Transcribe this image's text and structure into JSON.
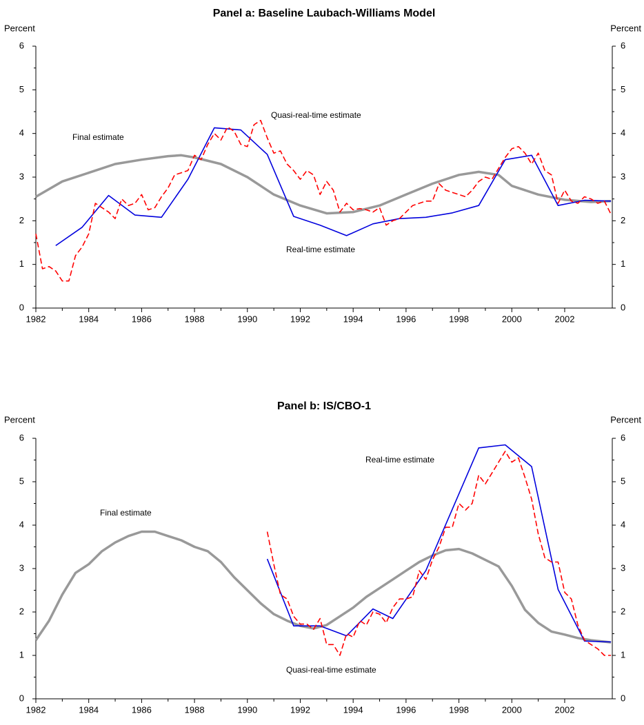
{
  "chart_data": [
    {
      "type": "line",
      "title": "Panel a: Baseline Laubach-Williams Model",
      "y_label": "Percent",
      "xlim": [
        1982,
        2003.8
      ],
      "xticks": [
        1982,
        1984,
        1986,
        1988,
        1990,
        1992,
        1994,
        1996,
        1998,
        2000,
        2002
      ],
      "ylim": [
        0,
        6
      ],
      "yticks": [
        0,
        1,
        2,
        3,
        4,
        5,
        6
      ],
      "series": [
        {
          "name": "Final estimate",
          "color": "#999999",
          "style": "solid",
          "x": [
            1982,
            1983,
            1984,
            1985,
            1986,
            1987,
            1987.5,
            1988,
            1989,
            1990,
            1991,
            1992,
            1993,
            1994,
            1995,
            1996,
            1997,
            1998,
            1998.75,
            1999.5,
            2000,
            2001,
            2002,
            2003,
            2003.75
          ],
          "values": [
            2.55,
            2.9,
            3.1,
            3.3,
            3.4,
            3.48,
            3.5,
            3.45,
            3.3,
            3.0,
            2.6,
            2.35,
            2.17,
            2.2,
            2.35,
            2.6,
            2.85,
            3.05,
            3.12,
            3.05,
            2.8,
            2.6,
            2.48,
            2.43,
            2.45
          ]
        },
        {
          "name": "Real-time estimate",
          "color": "#0000dd",
          "style": "solid",
          "x": [
            1982.75,
            1983.75,
            1984.75,
            1985.75,
            1986.75,
            1987.75,
            1988.75,
            1989.75,
            1990.75,
            1991.75,
            1992.75,
            1993.75,
            1994.75,
            1995.75,
            1996.75,
            1997.75,
            1998.75,
            1999.75,
            2000.75,
            2001.75,
            2002.75,
            2003.75
          ],
          "values": [
            1.43,
            1.85,
            2.58,
            2.13,
            2.08,
            2.95,
            4.13,
            4.08,
            3.52,
            2.1,
            1.9,
            1.66,
            1.93,
            2.05,
            2.08,
            2.18,
            2.35,
            3.4,
            3.5,
            2.35,
            2.47,
            2.45
          ]
        },
        {
          "name": "Quasi-real-time estimate",
          "color": "#ff0000",
          "style": "dashed",
          "x": [
            1982,
            1982.25,
            1982.5,
            1982.75,
            1983,
            1983.25,
            1983.5,
            1983.75,
            1984,
            1984.25,
            1984.5,
            1984.75,
            1985,
            1985.25,
            1985.5,
            1985.75,
            1986,
            1986.25,
            1986.5,
            1986.75,
            1987,
            1987.25,
            1987.5,
            1987.75,
            1988,
            1988.25,
            1988.5,
            1988.75,
            1989,
            1989.25,
            1989.5,
            1989.75,
            1990,
            1990.25,
            1990.5,
            1990.75,
            1991,
            1991.25,
            1991.5,
            1991.75,
            1992,
            1992.25,
            1992.5,
            1992.75,
            1993,
            1993.25,
            1993.5,
            1993.75,
            1994,
            1994.25,
            1994.5,
            1994.75,
            1995,
            1995.25,
            1995.5,
            1995.75,
            1996,
            1996.25,
            1996.5,
            1996.75,
            1997,
            1997.25,
            1997.5,
            1997.75,
            1998,
            1998.25,
            1998.5,
            1998.75,
            1999,
            1999.25,
            1999.5,
            1999.75,
            2000,
            2000.25,
            2000.5,
            2000.75,
            2001,
            2001.25,
            2001.5,
            2001.75,
            2002,
            2002.25,
            2002.5,
            2002.75,
            2003,
            2003.25,
            2003.5,
            2003.75
          ],
          "values": [
            1.7,
            0.9,
            0.95,
            0.85,
            0.62,
            0.62,
            1.2,
            1.4,
            1.7,
            2.4,
            2.3,
            2.2,
            2.05,
            2.5,
            2.35,
            2.4,
            2.6,
            2.25,
            2.3,
            2.55,
            2.75,
            3.05,
            3.1,
            3.15,
            3.5,
            3.4,
            3.75,
            4.0,
            3.85,
            4.15,
            4.05,
            3.75,
            3.7,
            4.2,
            4.3,
            3.9,
            3.55,
            3.6,
            3.3,
            3.15,
            2.95,
            3.15,
            3.05,
            2.6,
            2.9,
            2.7,
            2.2,
            2.4,
            2.25,
            2.28,
            2.25,
            2.2,
            2.3,
            1.9,
            2.0,
            2.05,
            2.2,
            2.35,
            2.4,
            2.45,
            2.45,
            2.85,
            2.7,
            2.65,
            2.6,
            2.55,
            2.7,
            2.9,
            3.0,
            2.95,
            3.2,
            3.45,
            3.65,
            3.7,
            3.55,
            3.3,
            3.55,
            3.15,
            3.05,
            2.4,
            2.7,
            2.45,
            2.4,
            2.55,
            2.5,
            2.4,
            2.45,
            2.15
          ]
        }
      ]
    },
    {
      "type": "line",
      "title": "Panel b: IS/CBO-1",
      "y_label": "Percent",
      "xlim": [
        1982,
        2003.8
      ],
      "xticks": [
        1982,
        1984,
        1986,
        1988,
        1990,
        1992,
        1994,
        1996,
        1998,
        2000,
        2002
      ],
      "ylim": [
        0,
        6
      ],
      "yticks": [
        0,
        1,
        2,
        3,
        4,
        5,
        6
      ],
      "series": [
        {
          "name": "Final estimate",
          "color": "#999999",
          "style": "solid",
          "x": [
            1982,
            1982.5,
            1983,
            1983.5,
            1984,
            1984.5,
            1985,
            1985.5,
            1986,
            1986.5,
            1987,
            1987.5,
            1988,
            1988.5,
            1989,
            1989.5,
            1990,
            1990.5,
            1991,
            1991.5,
            1992,
            1992.5,
            1993,
            1993.5,
            1994,
            1994.5,
            1995,
            1995.5,
            1996,
            1996.5,
            1997,
            1997.5,
            1998,
            1998.5,
            1999,
            1999.5,
            2000,
            2000.5,
            2001,
            2001.5,
            2002,
            2002.5,
            2003,
            2003.75
          ],
          "values": [
            1.35,
            1.8,
            2.4,
            2.9,
            3.1,
            3.4,
            3.6,
            3.75,
            3.85,
            3.85,
            3.75,
            3.65,
            3.5,
            3.4,
            3.15,
            2.8,
            2.5,
            2.2,
            1.95,
            1.8,
            1.68,
            1.62,
            1.7,
            1.9,
            2.1,
            2.35,
            2.55,
            2.75,
            2.95,
            3.15,
            3.3,
            3.42,
            3.45,
            3.35,
            3.2,
            3.05,
            2.6,
            2.05,
            1.75,
            1.55,
            1.48,
            1.4,
            1.35,
            1.3
          ]
        },
        {
          "name": "Real-time estimate",
          "color": "#0000dd",
          "style": "solid",
          "x": [
            1990.75,
            1991.75,
            1992.75,
            1993.75,
            1994.75,
            1995.5,
            1996.75,
            1998.75,
            1999.75,
            2000.75,
            2001.75,
            2002.75,
            2003.75
          ],
          "values": [
            3.22,
            1.68,
            1.68,
            1.45,
            2.07,
            1.85,
            2.95,
            5.78,
            5.85,
            5.35,
            2.52,
            1.33,
            1.31
          ]
        },
        {
          "name": "Quasi-real-time estimate",
          "color": "#ff0000",
          "style": "dashed",
          "x": [
            1990.75,
            1991,
            1991.25,
            1991.5,
            1991.75,
            1992,
            1992.25,
            1992.5,
            1992.75,
            1993,
            1993.25,
            1993.5,
            1993.75,
            1994,
            1994.25,
            1994.5,
            1994.75,
            1995,
            1995.25,
            1995.5,
            1995.75,
            1996,
            1996.25,
            1996.5,
            1996.75,
            1997,
            1997.25,
            1997.5,
            1997.75,
            1998,
            1998.25,
            1998.5,
            1998.75,
            1999,
            1999.25,
            1999.5,
            1999.75,
            2000,
            2000.25,
            2000.5,
            2000.75,
            2001,
            2001.25,
            2001.5,
            2001.75,
            2002,
            2002.25,
            2002.5,
            2002.75,
            2003,
            2003.25,
            2003.5,
            2003.75
          ],
          "values": [
            3.85,
            3.1,
            2.4,
            2.3,
            1.9,
            1.72,
            1.72,
            1.6,
            1.85,
            1.25,
            1.25,
            1.0,
            1.5,
            1.42,
            1.8,
            1.7,
            2.0,
            1.95,
            1.75,
            2.1,
            2.3,
            2.3,
            2.35,
            2.95,
            2.75,
            3.2,
            3.5,
            3.95,
            3.95,
            4.5,
            4.35,
            4.5,
            5.15,
            4.95,
            5.2,
            5.45,
            5.7,
            5.45,
            5.55,
            5.1,
            4.6,
            3.8,
            3.25,
            3.15,
            3.15,
            2.45,
            2.3,
            1.7,
            1.35,
            1.25,
            1.15,
            1.0,
            1.0
          ]
        }
      ]
    }
  ]
}
